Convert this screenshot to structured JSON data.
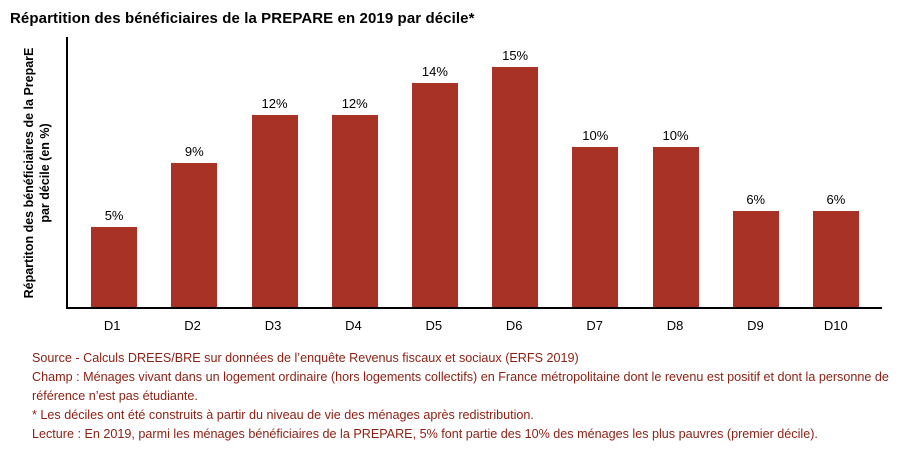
{
  "title": "Répartition des bénéficiaires de la PREPARE en 2019 par décile*",
  "colors": {
    "bar": "#A93226",
    "footnote_text": "#8B1F12",
    "axis": "#000000"
  },
  "chart_data": {
    "type": "bar",
    "title": "Répartition des bénéficiaires de la PREPARE en 2019 par décile*",
    "categories": [
      "D1",
      "D2",
      "D3",
      "D4",
      "D5",
      "D6",
      "D7",
      "D8",
      "D9",
      "D10"
    ],
    "values": [
      5,
      9,
      12,
      12,
      14,
      15,
      10,
      10,
      6,
      6
    ],
    "value_labels": [
      "5%",
      "9%",
      "12%",
      "12%",
      "14%",
      "15%",
      "10%",
      "10%",
      "6%",
      "6%"
    ],
    "xlabel": "",
    "ylabel": "Répartiton des bénéficiaires de la PreparE par décile (en %)",
    "ylim": [
      0,
      16
    ],
    "grid": false,
    "legend": false,
    "data_labels": true,
    "bar_color": "#A93226"
  },
  "footnotes": [
    "Source - Calculs DREES/BRE sur données de l’enquête Revenus fiscaux et sociaux (ERFS 2019)",
    "Champ : Ménages vivant dans un logement ordinaire (hors logements collectifs) en France métropolitaine dont le revenu est positif et dont la personne de référence n’est pas étudiante.",
    "* Les déciles ont été construits à partir du niveau de vie des ménages après redistribution.",
    "Lecture : En 2019, parmi les ménages bénéficiaires de la PREPARE, 5% font partie des 10% des ménages les plus pauvres (premier décile)."
  ]
}
